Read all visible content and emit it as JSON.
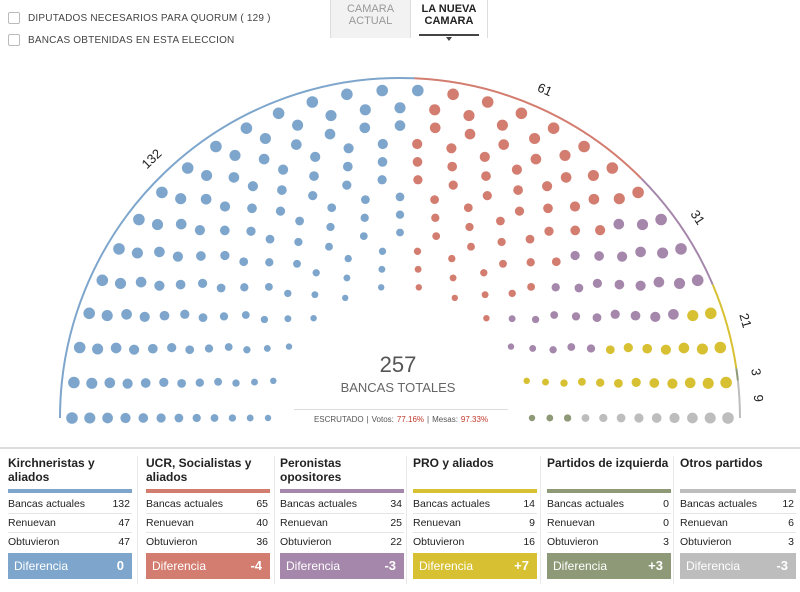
{
  "options": [
    {
      "label": "DIPUTADOS NECESARIOS PARA QUORUM ( 129 )"
    },
    {
      "label": "BANCAS OBTENIDAS EN ESTA ELECCION"
    }
  ],
  "tabs": [
    {
      "label": "CAMARA ACTUAL"
    },
    {
      "label": "LA NUEVA CAMARA"
    }
  ],
  "hemicycle": {
    "total": "257",
    "total_label": "BANCAS TOTALES",
    "scrutiny": {
      "label": "ESCRUTADO",
      "votes_label": "Votos:",
      "votes": "77.16%",
      "tables_label": "Mesas:",
      "tables": "97.33%"
    },
    "groups": [
      {
        "seats": 132,
        "label": "132",
        "color": "#7ea6cc"
      },
      {
        "seats": 61,
        "label": "61",
        "color": "#d37d70"
      },
      {
        "seats": 31,
        "label": "31",
        "color": "#a587ab"
      },
      {
        "seats": 21,
        "label": "21",
        "color": "#d8c033"
      },
      {
        "seats": 3,
        "label": "3",
        "color": "#8e9a77"
      },
      {
        "seats": 9,
        "label": "9",
        "color": "#bdbdbd"
      }
    ]
  },
  "row_labels": {
    "current": "Bancas actuales",
    "renew": "Renuevan",
    "obtained": "Obtuvieron",
    "diff": "Diferencia"
  },
  "parties": [
    {
      "name": "Kirchneristas y aliados",
      "color": "#7ea6cc",
      "current": "132",
      "renew": "47",
      "obtained": "47",
      "diff": "0"
    },
    {
      "name": "UCR, Socialistas y aliados",
      "color": "#d37d70",
      "current": "65",
      "renew": "40",
      "obtained": "36",
      "diff": "-4"
    },
    {
      "name": "Peronistas opositores",
      "color": "#a587ab",
      "current": "34",
      "renew": "25",
      "obtained": "22",
      "diff": "-3"
    },
    {
      "name": "PRO y aliados",
      "color": "#d8c033",
      "current": "14",
      "renew": "9",
      "obtained": "16",
      "diff": "+7"
    },
    {
      "name": "Partidos de izquierda",
      "color": "#8e9a77",
      "current": "0",
      "renew": "0",
      "obtained": "3",
      "diff": "+3"
    },
    {
      "name": "Otros partidos",
      "color": "#bdbdbd",
      "current": "12",
      "renew": "6",
      "obtained": "3",
      "diff": "-3"
    }
  ]
}
